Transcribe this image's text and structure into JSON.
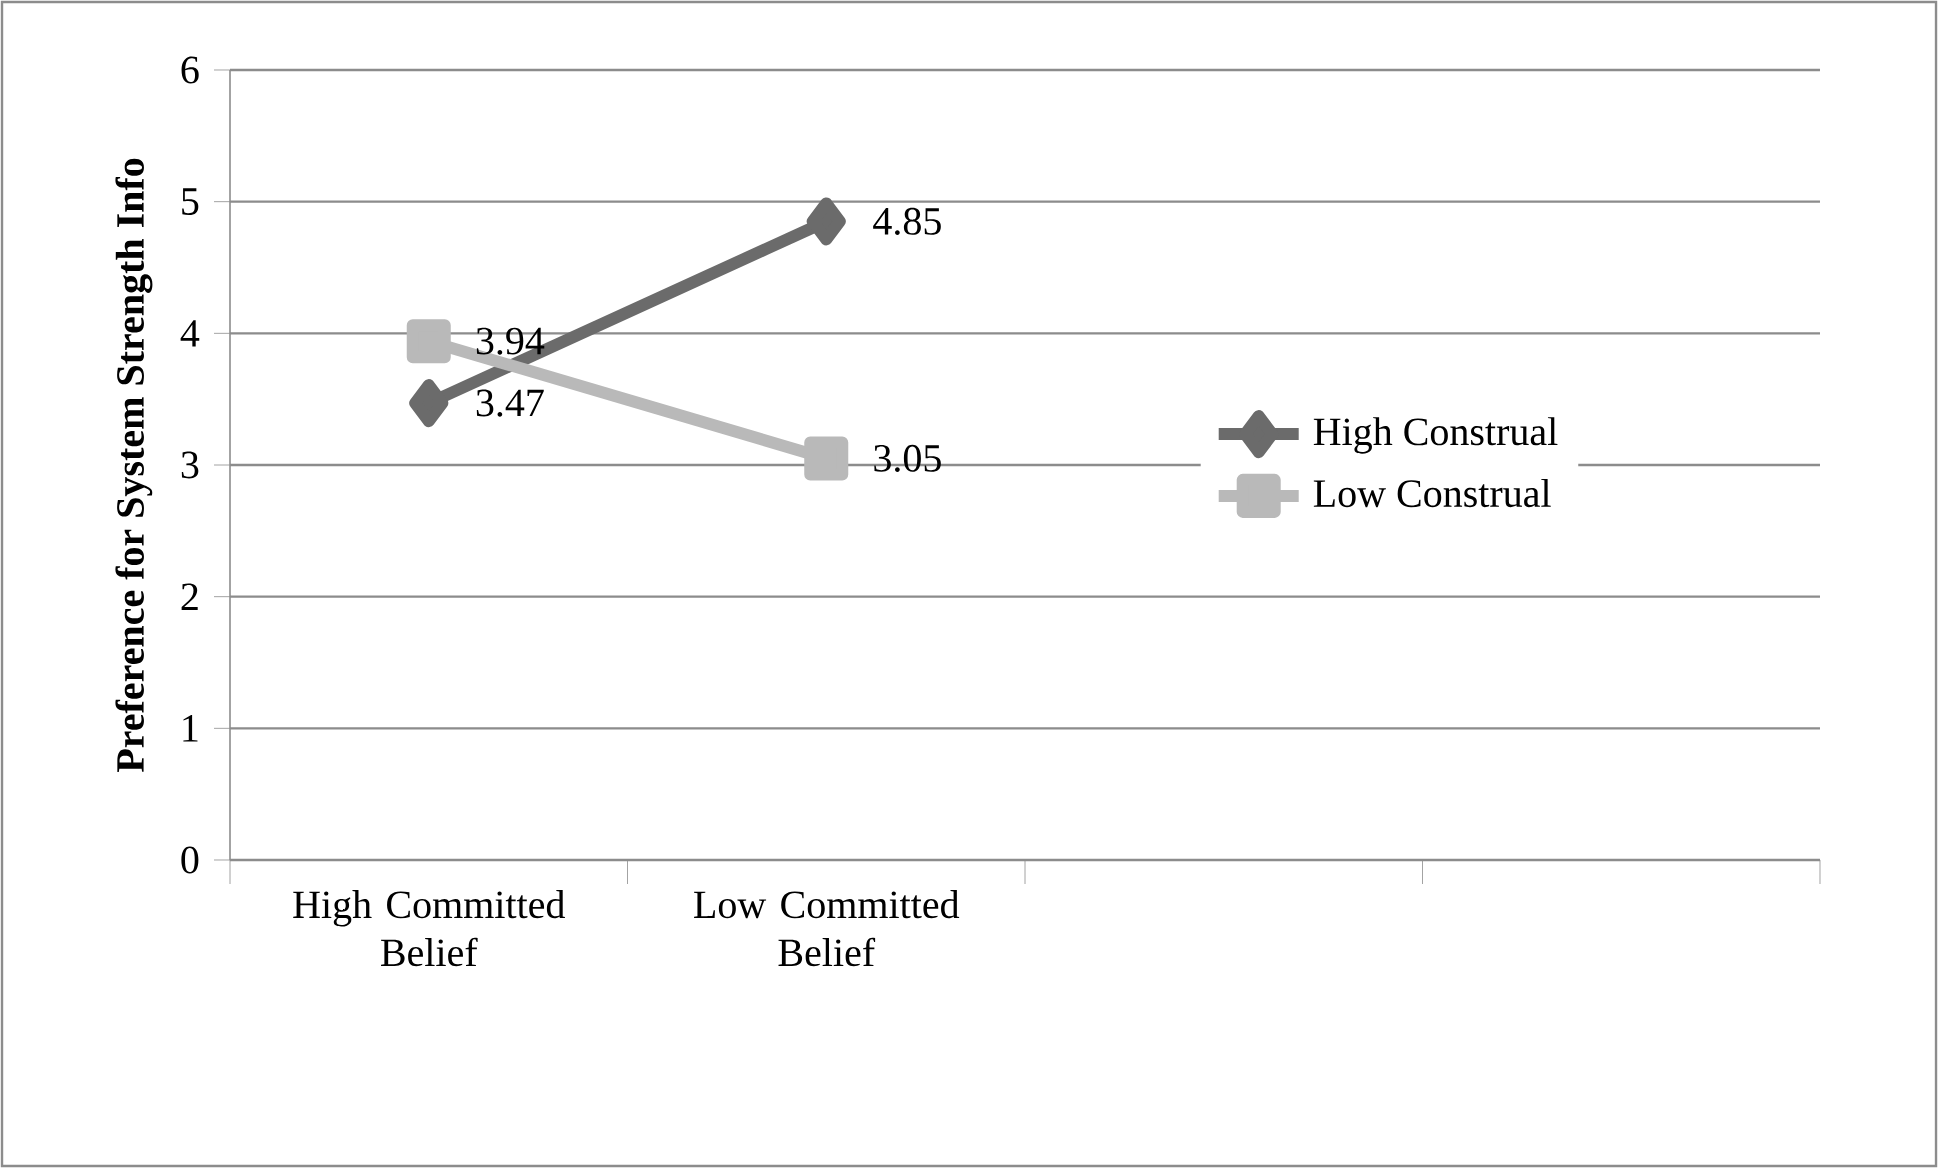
{
  "chart_data": {
    "type": "line",
    "ylabel": "Preference for System Strength Info",
    "categories": [
      "High Committed Belief",
      "Low Committed Belief",
      null,
      null
    ],
    "series": [
      {
        "name": "High Construal",
        "color": "#6b6b6b",
        "marker": "diamond",
        "values": [
          3.47,
          4.85,
          null,
          null
        ]
      },
      {
        "name": "Low Construal",
        "color": "#b9b9b9",
        "marker": "square",
        "values": [
          3.94,
          3.05,
          null,
          null
        ]
      }
    ],
    "ylim": [
      0,
      6
    ],
    "yticks": [
      0,
      1,
      2,
      3,
      4,
      5,
      6
    ],
    "grid": "y",
    "legend": "right",
    "data_labels": true
  }
}
